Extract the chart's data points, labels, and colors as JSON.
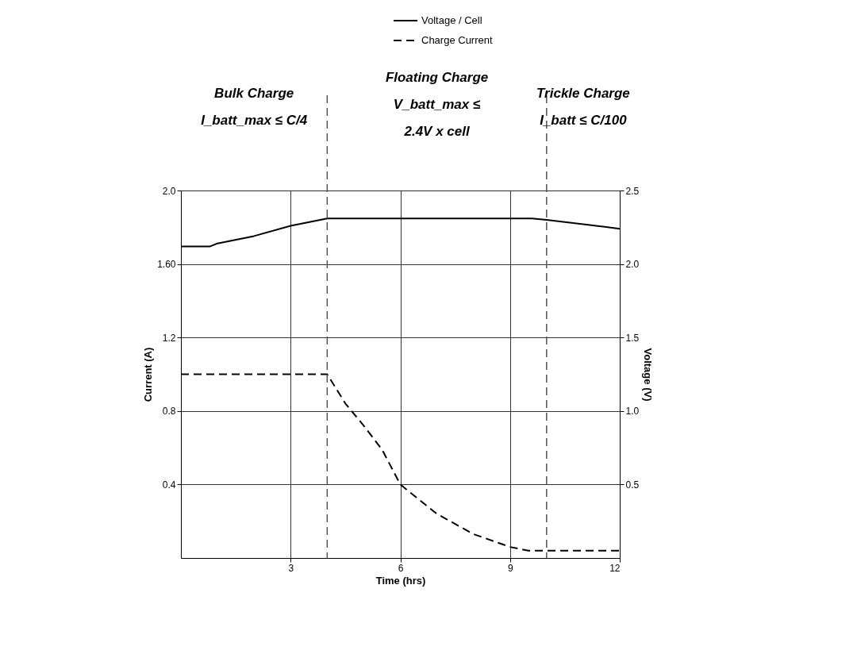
{
  "chart_data": {
    "type": "line",
    "xlabel": "Time (hrs)",
    "ylabel": "Current (A)",
    "y2label": "Voltage (V)",
    "xlim": [
      0,
      12
    ],
    "xticks": [
      3,
      6,
      9,
      12
    ],
    "ylim": [
      0,
      2.0
    ],
    "yticks": [
      0.4,
      0.8,
      1.2,
      {
        "value": 1.6,
        "label": "1.60"
      },
      {
        "value": 2.0,
        "label": "2.0"
      }
    ],
    "y2lim": [
      0,
      2.5
    ],
    "y2ticks": [
      0.5,
      {
        "value": 1.0,
        "label": "1.0"
      },
      1.5,
      {
        "value": 2.0,
        "label": "2.0"
      },
      2.5
    ],
    "grid": true,
    "legend": "top right",
    "marker": "none",
    "series": [
      {
        "name": "Voltage / Cell",
        "color": "#000000",
        "axis": "y2",
        "line_style": "solid",
        "x": [
          0,
          0.8,
          1,
          2,
          3,
          4,
          9.6,
          10,
          11,
          12
        ],
        "values": [
          2.12,
          2.12,
          2.14,
          2.19,
          2.26,
          2.31,
          2.31,
          2.3,
          2.27,
          2.24
        ]
      },
      {
        "name": "Charge Current",
        "color": "#000000",
        "line_style": "dashed",
        "x": [
          0,
          4,
          4.5,
          5,
          5.5,
          6,
          7,
          8,
          9,
          9.5,
          12
        ],
        "values": [
          1.0,
          1.0,
          0.84,
          0.72,
          0.59,
          0.4,
          0.24,
          0.13,
          0.06,
          0.04,
          0.04
        ]
      }
    ],
    "ref_lines": [
      {
        "axis": "x",
        "value": 4,
        "color": "#555555",
        "line_style": "dashed"
      },
      {
        "axis": "x",
        "value": 10,
        "color": "#555555",
        "line_style": "dashed"
      }
    ],
    "annotations": [
      "Bulk Charge\nI_batt_max ≤ C/4",
      "Floating Charge\nV_batt_max ≤\n2.4V x cell",
      "Trickle Charge\nI_batt ≤ C/100"
    ]
  }
}
